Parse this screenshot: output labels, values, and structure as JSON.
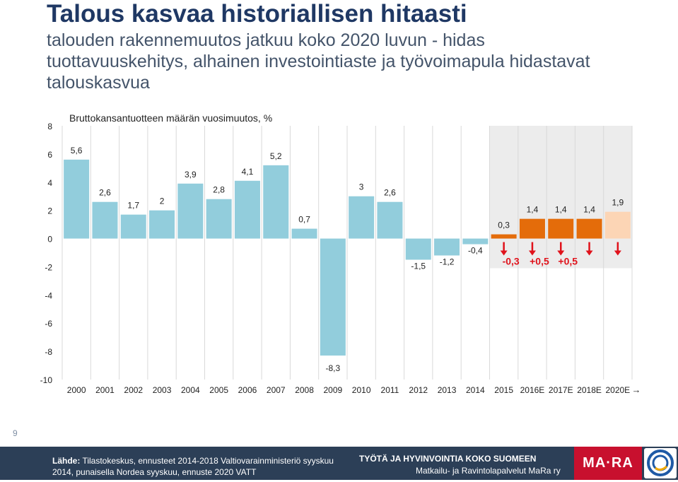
{
  "title": "Talous kasvaa historiallisen hitaasti",
  "subtitle": "talouden rakennemuutos jatkuu koko 2020 luvun - hidas tuottavuuskehitys, alhainen investointiaste ja työvoimapula hidastavat talouskasvua",
  "page_number": "9",
  "chart_data": {
    "type": "bar",
    "title": "Bruttokansantuotteen määrän vuosimuutos, %",
    "categories": [
      "2000",
      "2001",
      "2002",
      "2003",
      "2004",
      "2005",
      "2006",
      "2007",
      "2008",
      "2009",
      "2010",
      "2011",
      "2012",
      "2013",
      "2014",
      "2015",
      "2016E",
      "2017E",
      "2018E",
      "2020E"
    ],
    "x_axis_arrow": "→",
    "values": [
      5.6,
      2.6,
      1.7,
      2,
      3.9,
      2.8,
      4.1,
      5.2,
      0.7,
      -8.3,
      3,
      2.6,
      -1.5,
      -1.2,
      -0.4,
      0.3,
      1.4,
      1.4,
      1.4,
      1.9
    ],
    "value_labels": [
      "5,6",
      "2,6",
      "1,7",
      "2",
      "3,9",
      "2,8",
      "4,1",
      "5,2",
      "0,7",
      "-8,3",
      "3",
      "2,6",
      "-1,5",
      "-1,2",
      "-0,4",
      "0,3",
      "1,4",
      "1,4",
      "1,4",
      "1,9"
    ],
    "bar_colors": [
      "#92cddc",
      "#92cddc",
      "#92cddc",
      "#92cddc",
      "#92cddc",
      "#92cddc",
      "#92cddc",
      "#92cddc",
      "#92cddc",
      "#92cddc",
      "#92cddc",
      "#92cddc",
      "#92cddc",
      "#92cddc",
      "#92cddc",
      "#e46c0a",
      "#e46c0a",
      "#e46c0a",
      "#e46c0a",
      "#fcd5b5"
    ],
    "forecast_shading_from": "2015",
    "forecast_shading_color": "#ececec",
    "ylim": [
      -10,
      8
    ],
    "yticks": [
      8,
      6,
      4,
      2,
      0,
      -2,
      -4,
      -6,
      -8,
      -10
    ],
    "ytick_labels": [
      "8",
      "6",
      "4",
      "2",
      "0",
      "-2",
      "-4",
      "-6",
      "-8",
      "-10"
    ],
    "grid": "vertical",
    "revisions": {
      "color": "#e0121b",
      "arrow_categories": [
        "2015",
        "2016E",
        "2017E",
        "2018E",
        "2020E"
      ],
      "arrow_direction": "down",
      "labels": [
        {
          "category": "2015",
          "text": "-0,3"
        },
        {
          "category": "2016E",
          "text": "+0,5"
        },
        {
          "category": "2017E",
          "text": "+0,5"
        }
      ]
    }
  },
  "footer": {
    "source_label": "Lähde:",
    "source_text": " Tilastokeskus, ennusteet 2014-2018 Valtiovarainministeriö syyskuu 2014, punaisella Nordea syyskuu, ennuste 2020 VATT",
    "org_line1": "TYÖTÄ JA HYVINVOINTIA KOKO SUOMEEN",
    "org_line2": "Matkailu- ja Ravintolapalvelut MaRa ry",
    "logo_text": "MA·RA",
    "colors": {
      "background": "#2c3f57",
      "logo": "#c8102e"
    }
  }
}
